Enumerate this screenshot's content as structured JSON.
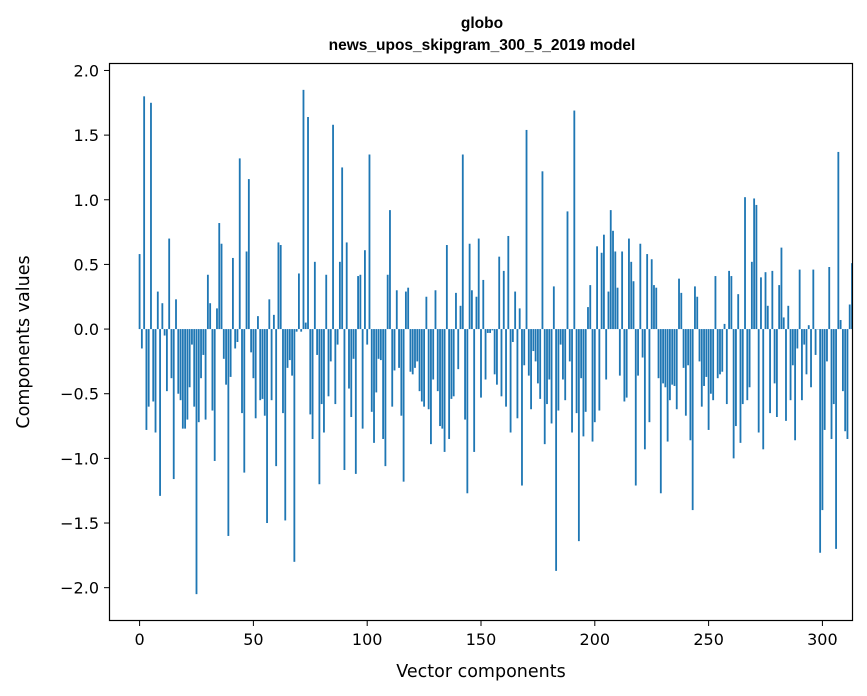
{
  "chart_data": {
    "type": "bar",
    "title": "globo",
    "subtitle": "news_upos_skipgram_300_5_2019 model",
    "xlabel": "Vector components",
    "ylabel": "Components values",
    "xlim": [
      -13,
      313
    ],
    "ylim": [
      -2.25,
      2.05
    ],
    "xticks": [
      0,
      50,
      100,
      150,
      200,
      250,
      300
    ],
    "yticks": [
      -2.0,
      -1.5,
      -1.0,
      -0.5,
      0.0,
      0.5,
      1.0,
      1.5,
      2.0
    ],
    "ytick_labels": [
      "−2.0",
      "−1.5",
      "−1.0",
      "−0.5",
      "0.0",
      "0.5",
      "1.0",
      "1.5",
      "2.0"
    ],
    "bar_color": "#1f77b4",
    "values": [
      0.58,
      -0.15,
      1.8,
      -0.78,
      -0.6,
      1.75,
      -0.56,
      -0.8,
      0.29,
      -1.29,
      0.2,
      -0.05,
      -0.48,
      0.7,
      -0.38,
      -1.16,
      0.23,
      -0.5,
      -0.55,
      -0.77,
      -0.77,
      -0.7,
      -0.45,
      -0.12,
      -0.6,
      -2.05,
      -0.72,
      -0.38,
      -0.2,
      -0.7,
      0.42,
      0.2,
      -0.63,
      -1.02,
      0.16,
      0.82,
      0.66,
      -0.23,
      -0.43,
      -1.6,
      -0.37,
      0.55,
      -0.15,
      -0.1,
      1.32,
      -0.65,
      -1.11,
      0.6,
      1.16,
      -0.18,
      -0.38,
      -0.69,
      0.1,
      -0.55,
      -0.54,
      -0.67,
      -1.5,
      0.23,
      -0.55,
      0.11,
      -1.06,
      0.67,
      0.65,
      -0.65,
      -1.48,
      -0.3,
      -0.24,
      -0.36,
      -1.8,
      -0.02,
      0.43,
      -0.02,
      1.85,
      0.05,
      1.64,
      -0.66,
      -0.85,
      0.52,
      -0.2,
      -1.2,
      -0.58,
      -0.8,
      0.42,
      -0.52,
      -0.25,
      1.58,
      -0.58,
      -0.12,
      0.52,
      1.25,
      -1.09,
      0.67,
      -0.46,
      -0.68,
      -0.23,
      -1.12,
      0.41,
      0.42,
      -0.77,
      0.61,
      -0.12,
      1.35,
      -0.64,
      -0.88,
      -0.49,
      -0.23,
      -0.24,
      -0.85,
      -1.06,
      0.42,
      0.92,
      -0.6,
      -0.32,
      0.3,
      -0.3,
      -0.67,
      -1.18,
      0.29,
      0.32,
      -0.33,
      -0.35,
      -0.3,
      -0.25,
      -0.48,
      -0.56,
      -0.6,
      0.25,
      -0.62,
      -0.89,
      -0.39,
      0.3,
      -0.48,
      -0.75,
      -0.77,
      -0.95,
      0.65,
      -0.85,
      -0.54,
      -0.52,
      0.28,
      -0.31,
      0.18,
      1.35,
      -0.7,
      -1.27,
      0.66,
      0.3,
      -0.95,
      0.25,
      0.7,
      -0.53,
      0.38,
      -0.39,
      -0.03,
      -0.03,
      -0.01,
      -0.35,
      -0.43,
      0.56,
      -0.52,
      0.45,
      -0.6,
      0.72,
      -0.8,
      -0.1,
      0.29,
      -0.69,
      0.16,
      -1.21,
      -0.28,
      1.54,
      -0.36,
      -0.62,
      -0.17,
      -0.25,
      -0.42,
      -0.54,
      1.22,
      -0.89,
      -0.58,
      -0.39,
      -0.73,
      0.33,
      -1.87,
      -0.63,
      -0.12,
      -0.39,
      -0.55,
      0.91,
      -0.25,
      -0.8,
      1.69,
      -0.65,
      -1.64,
      -0.38,
      -0.83,
      -0.64,
      0.17,
      0.34,
      -0.87,
      -0.72,
      0.64,
      -0.63,
      0.59,
      0.73,
      -0.39,
      0.29,
      0.92,
      0.76,
      0.6,
      0.32,
      -0.36,
      0.6,
      -0.56,
      -0.53,
      0.7,
      0.52,
      0.37,
      -1.21,
      -0.36,
      0.66,
      -0.22,
      -0.93,
      0.58,
      -0.72,
      0.54,
      0.34,
      0.32,
      -0.38,
      -1.27,
      -0.42,
      -0.45,
      -0.87,
      -0.55,
      -0.43,
      -0.44,
      -0.62,
      0.39,
      0.28,
      -0.3,
      -0.67,
      -0.28,
      -0.86,
      -1.4,
      0.33,
      0.25,
      -0.25,
      -0.6,
      -0.44,
      -0.37,
      -0.78,
      -0.5,
      -0.55,
      0.41,
      -0.38,
      -0.35,
      -0.33,
      0.04,
      -0.58,
      0.45,
      0.41,
      -1.0,
      -0.75,
      0.27,
      -0.88,
      -0.58,
      1.02,
      -0.55,
      -0.45,
      0.52,
      1.01,
      0.96,
      -0.8,
      0.4,
      -0.93,
      0.44,
      0.18,
      -0.65,
      0.45,
      -0.42,
      -0.68,
      0.34,
      0.63,
      0.09,
      -0.71,
      0.18,
      -0.55,
      -0.28,
      -0.86,
      -0.15,
      0.46,
      -0.55,
      -0.12,
      -0.35,
      0.03,
      -0.45,
      0.46,
      -0.2,
      0.0,
      -1.73,
      -1.4,
      -0.78,
      -0.25,
      0.48,
      -0.85,
      -0.58,
      -1.7,
      1.37,
      0.07,
      -0.48,
      -0.79,
      -0.85,
      0.19,
      0.51
    ]
  }
}
